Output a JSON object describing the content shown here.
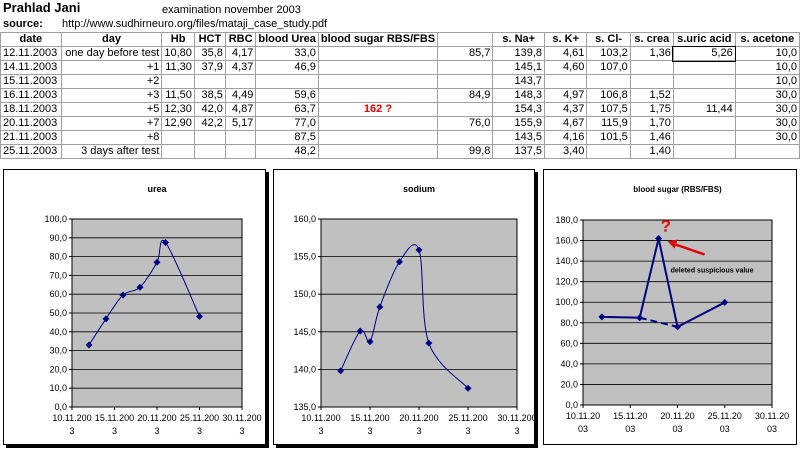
{
  "header": {
    "name": "Prahlad Jani",
    "exam": "examination november 2003",
    "source_label": "source:",
    "source_url": "http://www.sudhirneuro.org/files/mataji_case_study.pdf"
  },
  "table": {
    "columns": [
      "date",
      "day",
      "Hb",
      "HCT",
      "RBC",
      "blood Urea",
      "blood sugar RBS/FBS",
      "",
      "s. Na+",
      "s. K+",
      "s. Cl-",
      "s. crea",
      "s.uric acid",
      "s. acetone"
    ],
    "rows": [
      [
        "12.11.2003",
        "one day before test",
        "10,80",
        "35,8",
        "4,17",
        "33,0",
        "",
        "85,7",
        "139,8",
        "4,61",
        "103,2",
        "1,36",
        "5,26",
        "10,0"
      ],
      [
        "14.11.2003",
        "+1",
        "11,30",
        "37,9",
        "4,37",
        "46,9",
        "",
        "",
        "145,1",
        "4,60",
        "107,0",
        "",
        "",
        "10,0"
      ],
      [
        "15.11.2003",
        "+2",
        "",
        "",
        "",
        "",
        "",
        "",
        "143,7",
        "",
        "",
        "",
        "",
        "10,0"
      ],
      [
        "16.11.2003",
        "+3",
        "11,50",
        "38,5",
        "4,49",
        "59,6",
        "",
        "84,9",
        "148,3",
        "4,97",
        "106,8",
        "1,52",
        "",
        "30,0"
      ],
      [
        "18.11.2003",
        "+5",
        "12,30",
        "42,0",
        "4,87",
        "63,7",
        "162 ?",
        "",
        "154,3",
        "4,37",
        "107,5",
        "1,75",
        "11,44",
        "30,0"
      ],
      [
        "20.11.2003",
        "+7",
        "12,90",
        "42,2",
        "5,17",
        "77,0",
        "",
        "76,0",
        "155,9",
        "4,67",
        "115,9",
        "1,70",
        "",
        "30,0"
      ],
      [
        "21.11.2003",
        "+8",
        "",
        "",
        "",
        "87,5",
        "",
        "",
        "143,5",
        "4,16",
        "101,5",
        "1,46",
        "",
        "30,0"
      ],
      [
        "25.11.2003",
        "3 days after test",
        "",
        "",
        "",
        "48,2",
        "",
        "99,8",
        "137,5",
        "3,40",
        "",
        "1,40",
        "",
        ""
      ]
    ]
  },
  "chart_data": [
    {
      "type": "scatter",
      "title": "urea",
      "x": [
        "12.11.2003",
        "14.11.2003",
        "16.11.2003",
        "18.11.2003",
        "20.11.2003",
        "21.11.2003",
        "25.11.2003"
      ],
      "series": [
        {
          "values": [
            33.0,
            46.9,
            59.6,
            63.7,
            77.0,
            87.5,
            48.2
          ]
        }
      ],
      "y_ticks": [
        "0,0",
        "10,0",
        "20,0",
        "30,0",
        "40,0",
        "50,0",
        "60,0",
        "70,0",
        "80,0",
        "90,0",
        "100,0"
      ],
      "x_ticks": [
        [
          "10.11.200",
          "3"
        ],
        [
          "15.11.200",
          "3"
        ],
        [
          "20.11.200",
          "3"
        ],
        [
          "25.11.200",
          "3"
        ],
        [
          "30.11.200",
          "3"
        ]
      ],
      "ylim": [
        0,
        100
      ],
      "xlim": [
        "10.11.2003",
        "30.11.2003"
      ],
      "grid": true,
      "plot_bg": "#c0c0c0",
      "line_color": "#000080"
    },
    {
      "type": "scatter",
      "title": "sodium",
      "x": [
        "12.11.2003",
        "14.11.2003",
        "15.11.2003",
        "16.11.2003",
        "18.11.2003",
        "20.11.2003",
        "21.11.2003",
        "25.11.2003"
      ],
      "series": [
        {
          "values": [
            139.8,
            145.1,
            143.7,
            148.3,
            154.3,
            155.9,
            143.5,
            137.5
          ]
        }
      ],
      "y_ticks": [
        "135,0",
        "140,0",
        "145,0",
        "150,0",
        "155,0",
        "160,0"
      ],
      "x_ticks": [
        [
          "10.11.200",
          "3"
        ],
        [
          "15.11.200",
          "3"
        ],
        [
          "20.11.200",
          "3"
        ],
        [
          "25.11.200",
          "3"
        ],
        [
          "30.11.200",
          "3"
        ]
      ],
      "ylim": [
        135,
        160
      ],
      "xlim": [
        "10.11.2003",
        "30.11.2003"
      ],
      "grid": true,
      "plot_bg": "#c0c0c0",
      "line_color": "#000080"
    },
    {
      "type": "scatter",
      "title": "blood sugar (RBS/FBS)",
      "x": [
        "12.11.2003",
        "16.11.2003",
        "18.11.2003",
        "20.11.2003",
        "25.11.2003"
      ],
      "series": [
        {
          "values": [
            85.7,
            84.9,
            162,
            76.0,
            99.8
          ]
        }
      ],
      "y_ticks": [
        "0,0",
        "20,0",
        "40,0",
        "60,0",
        "80,0",
        "100,0",
        "120,0",
        "140,0",
        "160,0",
        "180,0"
      ],
      "x_ticks": [
        [
          "10.11.20",
          "03"
        ],
        [
          "15.11.20",
          "03"
        ],
        [
          "20.11.20",
          "03"
        ],
        [
          "25.11.20",
          "03"
        ],
        [
          "30.11.20",
          "03"
        ]
      ],
      "ylim": [
        0,
        180
      ],
      "xlim": [
        "10.11.2003",
        "30.11.2003"
      ],
      "grid": true,
      "plot_bg": "#c0c0c0",
      "line_color": "#000080",
      "annotations": [
        {
          "text": "?",
          "color": "#e00000"
        },
        {
          "text": "deleted suspicious value",
          "color": "#000000"
        }
      ]
    }
  ]
}
